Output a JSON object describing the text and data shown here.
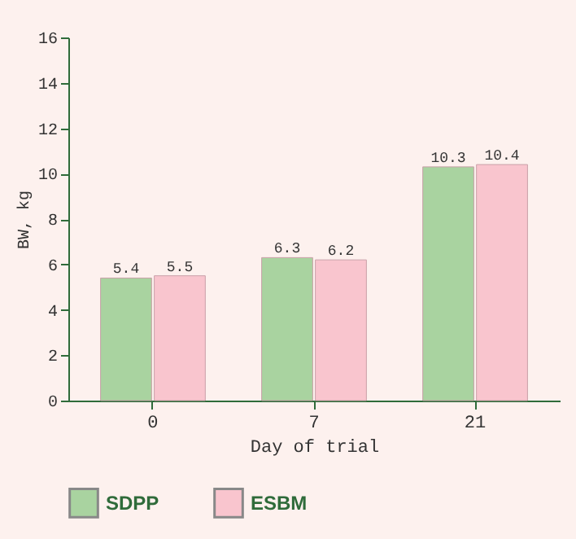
{
  "chart_data": {
    "type": "bar",
    "xlabel": "Day of trial",
    "ylabel": "BW, kg",
    "categories": [
      "0",
      "7",
      "21"
    ],
    "series": [
      {
        "name": "SDPP",
        "color": "#a9d3a0",
        "values": [
          5.4,
          6.3,
          10.3
        ]
      },
      {
        "name": "ESBM",
        "color": "#f9c5ce",
        "values": [
          5.5,
          6.2,
          10.4
        ]
      }
    ],
    "ylim": [
      0,
      16
    ],
    "yticks": [
      0,
      2,
      4,
      6,
      8,
      10,
      12,
      14,
      16
    ],
    "grid": false,
    "legend": "bottom",
    "data_labels": true
  }
}
